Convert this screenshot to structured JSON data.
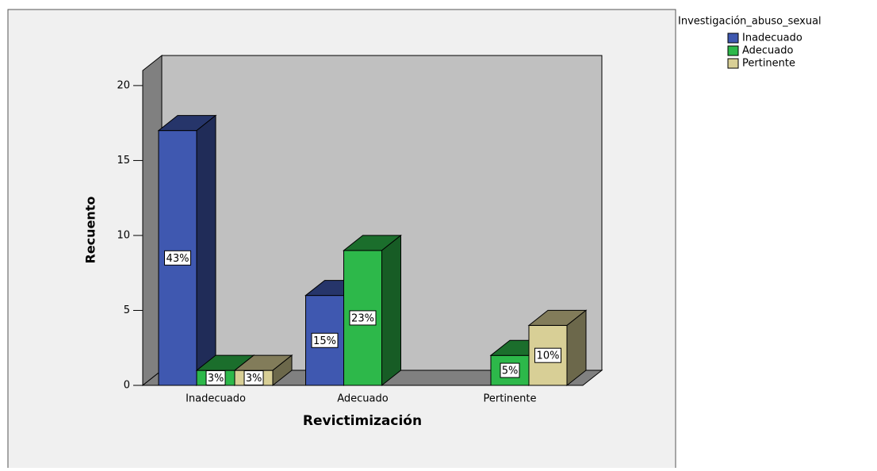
{
  "chart_data": {
    "type": "bar3d",
    "x_label": "Revictimización",
    "y_label": "Recuento",
    "legend_title": "Investigación_abuso_sexual",
    "categories": [
      "Inadecuado",
      "Adecuado",
      "Pertinente"
    ],
    "series": [
      {
        "name": "Inadecuado",
        "color": "#3f58b0",
        "values": [
          17,
          6,
          null
        ],
        "value_labels": [
          "43%",
          "15%",
          null
        ]
      },
      {
        "name": "Adecuado",
        "color": "#2db84a",
        "values": [
          1,
          9,
          2
        ],
        "value_labels": [
          "3%",
          "23%",
          "5%"
        ]
      },
      {
        "name": "Pertinente",
        "color": "#d8cf96",
        "values": [
          1,
          null,
          4
        ],
        "value_labels": [
          "3%",
          null,
          "10%"
        ]
      }
    ],
    "ylim": [
      0,
      21
    ],
    "yticks": [
      0,
      5,
      10,
      15,
      20
    ],
    "legend": "outside-right"
  }
}
